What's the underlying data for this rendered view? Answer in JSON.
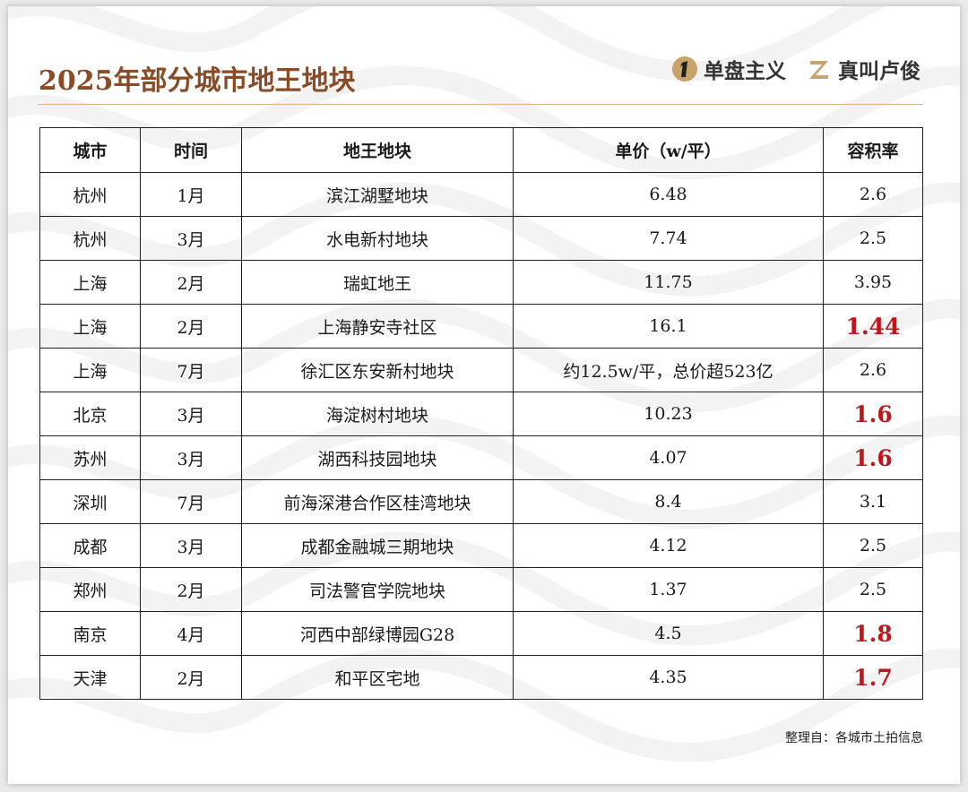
{
  "title": "2025年部分城市地王地块",
  "brands": [
    {
      "icon": "circle-one-logo-icon",
      "name": "单盘主义"
    },
    {
      "icon": "z-logo-icon",
      "name": "真叫卢俊"
    }
  ],
  "table": {
    "headers": [
      "城市",
      "时间",
      "地王地块",
      "单价（w/平）",
      "容积率"
    ],
    "rows": [
      {
        "city": "杭州",
        "month": "1月",
        "plot": "滨江湖墅地块",
        "price": "6.48",
        "far": "2.6",
        "far_highlight": false
      },
      {
        "city": "杭州",
        "month": "3月",
        "plot": "水电新村地块",
        "price": "7.74",
        "far": "2.5",
        "far_highlight": false
      },
      {
        "city": "上海",
        "month": "2月",
        "plot": "瑞虹地王",
        "price": "11.75",
        "far": "3.95",
        "far_highlight": false
      },
      {
        "city": "上海",
        "month": "2月",
        "plot": "上海静安寺社区",
        "price": "16.1",
        "far": "1.44",
        "far_highlight": true
      },
      {
        "city": "上海",
        "month": "7月",
        "plot": "徐汇区东安新村地块",
        "price": "约12.5w/平，总价超523亿",
        "far": "2.6",
        "far_highlight": false
      },
      {
        "city": "北京",
        "month": "3月",
        "plot": "海淀树村地块",
        "price": "10.23",
        "far": "1.6",
        "far_highlight": true
      },
      {
        "city": "苏州",
        "month": "3月",
        "plot": "湖西科技园地块",
        "price": "4.07",
        "far": "1.6",
        "far_highlight": true
      },
      {
        "city": "深圳",
        "month": "7月",
        "plot": "前海深港合作区桂湾地块",
        "price": "8.4",
        "far": "3.1",
        "far_highlight": false
      },
      {
        "city": "成都",
        "month": "3月",
        "plot": "成都金融城三期地块",
        "price": "4.12",
        "far": "2.5",
        "far_highlight": false
      },
      {
        "city": "郑州",
        "month": "2月",
        "plot": "司法警官学院地块",
        "price": "1.37",
        "far": "2.5",
        "far_highlight": false
      },
      {
        "city": "南京",
        "month": "4月",
        "plot": "河西中部绿博园G28",
        "price": "4.5",
        "far": "1.8",
        "far_highlight": true
      },
      {
        "city": "天津",
        "month": "2月",
        "plot": "和平区宅地",
        "price": "4.35",
        "far": "1.7",
        "far_highlight": true
      }
    ]
  },
  "source_note": "整理自：各城市土拍信息",
  "colors": {
    "title": "#8a4b25",
    "highlight": "#c0161b",
    "rule": "#d9b48a",
    "logo_gold": "#c9a46a"
  }
}
